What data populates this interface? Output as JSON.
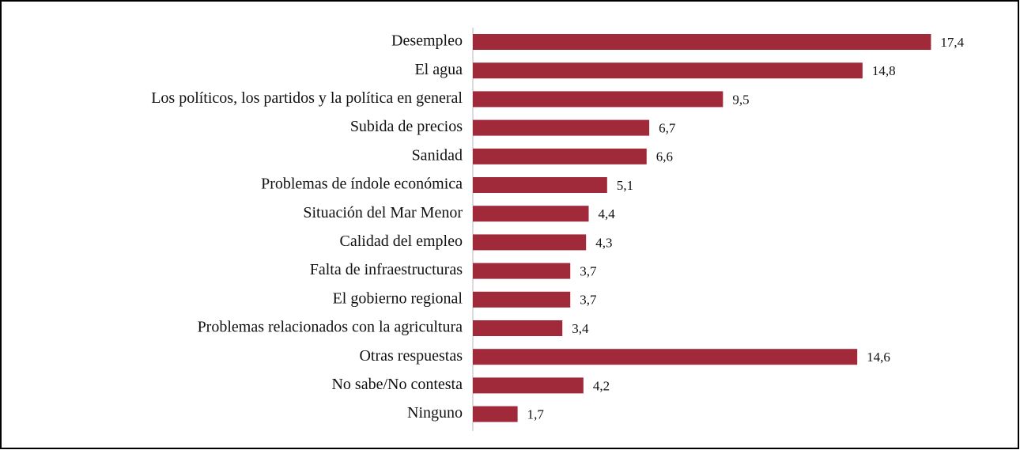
{
  "chart_data": {
    "type": "hbar",
    "categories": [
      "Desempleo",
      "El agua",
      "Los políticos, los partidos y la política en general",
      "Subida de precios",
      "Sanidad",
      "Problemas de índole económica",
      "Situación del Mar Menor",
      "Calidad del empleo",
      "Falta de infraestructuras",
      "El gobierno regional",
      "Problemas relacionados con la agricultura",
      "Otras respuestas",
      "No sabe/No contesta",
      "Ninguno"
    ],
    "values": [
      17.4,
      14.8,
      9.5,
      6.7,
      6.6,
      5.1,
      4.4,
      4.3,
      3.7,
      3.7,
      3.4,
      14.6,
      4.2,
      1.7
    ],
    "value_labels": [
      "17,4",
      "14,8",
      "9,5",
      "6,7",
      "6,6",
      "5,1",
      "4,4",
      "4,3",
      "3,7",
      "3,7",
      "3,4",
      "14,6",
      "4,2",
      "1,7"
    ],
    "color": "#a0293a",
    "xlim": [
      0,
      20
    ]
  }
}
